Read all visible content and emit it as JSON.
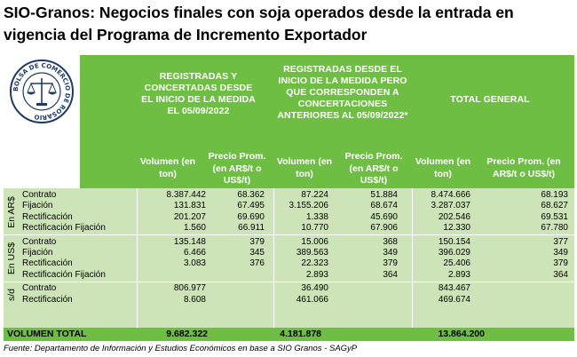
{
  "title": "SIO-Granos: Negocios finales con soja operados desde la entrada en vigencia del Programa de Incremento Exportador",
  "logo": {
    "icon": "scales-of-justice-icon",
    "text": "BOLSA DE COMERCIO DE ROSARIO"
  },
  "headers": {
    "group1": "REGISTRADAS Y CONCERTADAS DESDE EL INICIO DE LA MEDIDA EL 05/09/2022",
    "group2": "REGISTRADAS DESDE EL INICIO DE LA MEDIDA PERO QUE CORRESPONDEN A CONCERTACIONES ANTERIORES AL 05/09/2022*",
    "group3": "TOTAL GENERAL",
    "volumen": "Volumen (en ton)",
    "precio": "Precio Prom. (en AR$/t o US$/t)"
  },
  "sections": [
    {
      "label": "En AR$",
      "rows": [
        {
          "label": "Contrato",
          "vals": [
            "8.387.442",
            "68.362",
            "87.224",
            "51.884",
            "8.474.666",
            "68.193"
          ]
        },
        {
          "label": "Fijación",
          "vals": [
            "131.831",
            "67.495",
            "3.155.206",
            "68.674",
            "3.287.037",
            "68.627"
          ]
        },
        {
          "label": "Rectificación",
          "vals": [
            "201.207",
            "69.690",
            "1.338",
            "45.690",
            "202.546",
            "69.531"
          ]
        },
        {
          "label": "Rectificación Fijación",
          "vals": [
            "1.560",
            "66.911",
            "10.770",
            "67.906",
            "12.330",
            "67.780"
          ]
        }
      ]
    },
    {
      "label": "En US$",
      "rows": [
        {
          "label": "Contrato",
          "vals": [
            "135.148",
            "379",
            "15.006",
            "368",
            "150.154",
            "377"
          ]
        },
        {
          "label": "Fijación",
          "vals": [
            "6.466",
            "345",
            "389.563",
            "349",
            "396.029",
            "349"
          ]
        },
        {
          "label": "Rectificación",
          "vals": [
            "3.083",
            "376",
            "22.323",
            "379",
            "25.406",
            "379"
          ]
        },
        {
          "label": "Rectificación Fijación",
          "vals": [
            "",
            "",
            "2.893",
            "364",
            "2.893",
            "364"
          ]
        }
      ]
    },
    {
      "label": "s/d",
      "rows": [
        {
          "label": "Contrato",
          "vals": [
            "806.977",
            "",
            "36.490",
            "",
            "843.467",
            ""
          ]
        },
        {
          "label": "Rectificación",
          "vals": [
            "8.608",
            "",
            "461.066",
            "",
            "469.674",
            ""
          ]
        }
      ]
    }
  ],
  "total": {
    "label": "VOLUMEN TOTAL",
    "vals": [
      "9.682.322",
      "4.181.878",
      "13.864.200"
    ]
  },
  "source": "Fuente: Departamento de Información y Estudios Económicos en base a SIO Granos - SAGyP"
}
